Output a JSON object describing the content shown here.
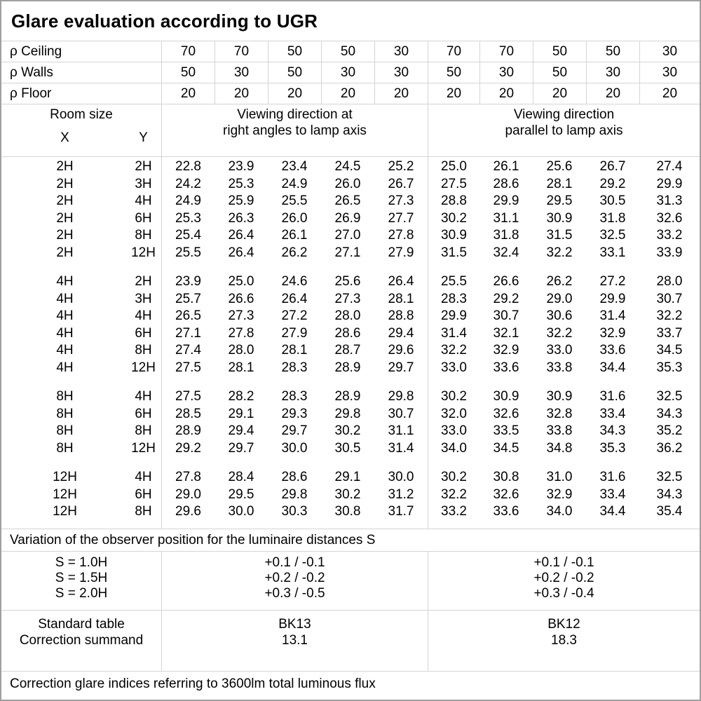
{
  "title": "Glare evaluation according to UGR",
  "reflectances": [
    {
      "label": "ρ Ceiling",
      "values": [
        "70",
        "70",
        "50",
        "50",
        "30",
        "70",
        "70",
        "50",
        "50",
        "30"
      ]
    },
    {
      "label": "ρ Walls",
      "values": [
        "50",
        "30",
        "50",
        "30",
        "30",
        "50",
        "30",
        "50",
        "30",
        "30"
      ]
    },
    {
      "label": "ρ Floor",
      "values": [
        "20",
        "20",
        "20",
        "20",
        "20",
        "20",
        "20",
        "20",
        "20",
        "20"
      ]
    }
  ],
  "header": {
    "room_size": "Room size",
    "x_label": "X",
    "y_label": "Y",
    "group1_line1": "Viewing direction at",
    "group1_line2": "right angles to lamp axis",
    "group2_line1": "Viewing direction",
    "group2_line2": "parallel to lamp axis"
  },
  "ugr_groups": [
    {
      "rows": [
        {
          "x": "2H",
          "y": "2H",
          "values": [
            "22.8",
            "23.9",
            "23.4",
            "24.5",
            "25.2",
            "25.0",
            "26.1",
            "25.6",
            "26.7",
            "27.4"
          ]
        },
        {
          "x": "2H",
          "y": "3H",
          "values": [
            "24.2",
            "25.3",
            "24.9",
            "26.0",
            "26.7",
            "27.5",
            "28.6",
            "28.1",
            "29.2",
            "29.9"
          ]
        },
        {
          "x": "2H",
          "y": "4H",
          "values": [
            "24.9",
            "25.9",
            "25.5",
            "26.5",
            "27.3",
            "28.8",
            "29.9",
            "29.5",
            "30.5",
            "31.3"
          ]
        },
        {
          "x": "2H",
          "y": "6H",
          "values": [
            "25.3",
            "26.3",
            "26.0",
            "26.9",
            "27.7",
            "30.2",
            "31.1",
            "30.9",
            "31.8",
            "32.6"
          ]
        },
        {
          "x": "2H",
          "y": "8H",
          "values": [
            "25.4",
            "26.4",
            "26.1",
            "27.0",
            "27.8",
            "30.9",
            "31.8",
            "31.5",
            "32.5",
            "33.2"
          ]
        },
        {
          "x": "2H",
          "y": "12H",
          "values": [
            "25.5",
            "26.4",
            "26.2",
            "27.1",
            "27.9",
            "31.5",
            "32.4",
            "32.2",
            "33.1",
            "33.9"
          ]
        }
      ]
    },
    {
      "rows": [
        {
          "x": "4H",
          "y": "2H",
          "values": [
            "23.9",
            "25.0",
            "24.6",
            "25.6",
            "26.4",
            "25.5",
            "26.6",
            "26.2",
            "27.2",
            "28.0"
          ]
        },
        {
          "x": "4H",
          "y": "3H",
          "values": [
            "25.7",
            "26.6",
            "26.4",
            "27.3",
            "28.1",
            "28.3",
            "29.2",
            "29.0",
            "29.9",
            "30.7"
          ]
        },
        {
          "x": "4H",
          "y": "4H",
          "values": [
            "26.5",
            "27.3",
            "27.2",
            "28.0",
            "28.8",
            "29.9",
            "30.7",
            "30.6",
            "31.4",
            "32.2"
          ]
        },
        {
          "x": "4H",
          "y": "6H",
          "values": [
            "27.1",
            "27.8",
            "27.9",
            "28.6",
            "29.4",
            "31.4",
            "32.1",
            "32.2",
            "32.9",
            "33.7"
          ]
        },
        {
          "x": "4H",
          "y": "8H",
          "values": [
            "27.4",
            "28.0",
            "28.1",
            "28.7",
            "29.6",
            "32.2",
            "32.9",
            "33.0",
            "33.6",
            "34.5"
          ]
        },
        {
          "x": "4H",
          "y": "12H",
          "values": [
            "27.5",
            "28.1",
            "28.3",
            "28.9",
            "29.7",
            "33.0",
            "33.6",
            "33.8",
            "34.4",
            "35.3"
          ]
        }
      ]
    },
    {
      "rows": [
        {
          "x": "8H",
          "y": "4H",
          "values": [
            "27.5",
            "28.2",
            "28.3",
            "28.9",
            "29.8",
            "30.2",
            "30.9",
            "30.9",
            "31.6",
            "32.5"
          ]
        },
        {
          "x": "8H",
          "y": "6H",
          "values": [
            "28.5",
            "29.1",
            "29.3",
            "29.8",
            "30.7",
            "32.0",
            "32.6",
            "32.8",
            "33.4",
            "34.3"
          ]
        },
        {
          "x": "8H",
          "y": "8H",
          "values": [
            "28.9",
            "29.4",
            "29.7",
            "30.2",
            "31.1",
            "33.0",
            "33.5",
            "33.8",
            "34.3",
            "35.2"
          ]
        },
        {
          "x": "8H",
          "y": "12H",
          "values": [
            "29.2",
            "29.7",
            "30.0",
            "30.5",
            "31.4",
            "34.0",
            "34.5",
            "34.8",
            "35.3",
            "36.2"
          ]
        }
      ]
    },
    {
      "rows": [
        {
          "x": "12H",
          "y": "4H",
          "values": [
            "27.8",
            "28.4",
            "28.6",
            "29.1",
            "30.0",
            "30.2",
            "30.8",
            "31.0",
            "31.6",
            "32.5"
          ]
        },
        {
          "x": "12H",
          "y": "6H",
          "values": [
            "29.0",
            "29.5",
            "29.8",
            "30.2",
            "31.2",
            "32.2",
            "32.6",
            "32.9",
            "33.4",
            "34.3"
          ]
        },
        {
          "x": "12H",
          "y": "8H",
          "values": [
            "29.6",
            "30.0",
            "30.3",
            "30.8",
            "31.7",
            "33.2",
            "33.6",
            "34.0",
            "34.4",
            "35.4"
          ]
        }
      ]
    }
  ],
  "variation_note": "Variation of the observer position for the luminaire distances S",
  "observer_variation": {
    "labels": [
      "S = 1.0H",
      "S = 1.5H",
      "S = 2.0H"
    ],
    "right_angles": [
      "+0.1 / -0.1",
      "+0.2 / -0.2",
      "+0.3 / -0.5"
    ],
    "parallel": [
      "+0.1 / -0.1",
      "+0.2 / -0.2",
      "+0.3 / -0.4"
    ]
  },
  "standard": {
    "labels": [
      "Standard table",
      "Correction summand"
    ],
    "right_angles": [
      "BK13",
      "13.1"
    ],
    "parallel": [
      "BK12",
      "18.3"
    ]
  },
  "footer_note": "Correction glare indices referring to 3600lm total luminous flux"
}
